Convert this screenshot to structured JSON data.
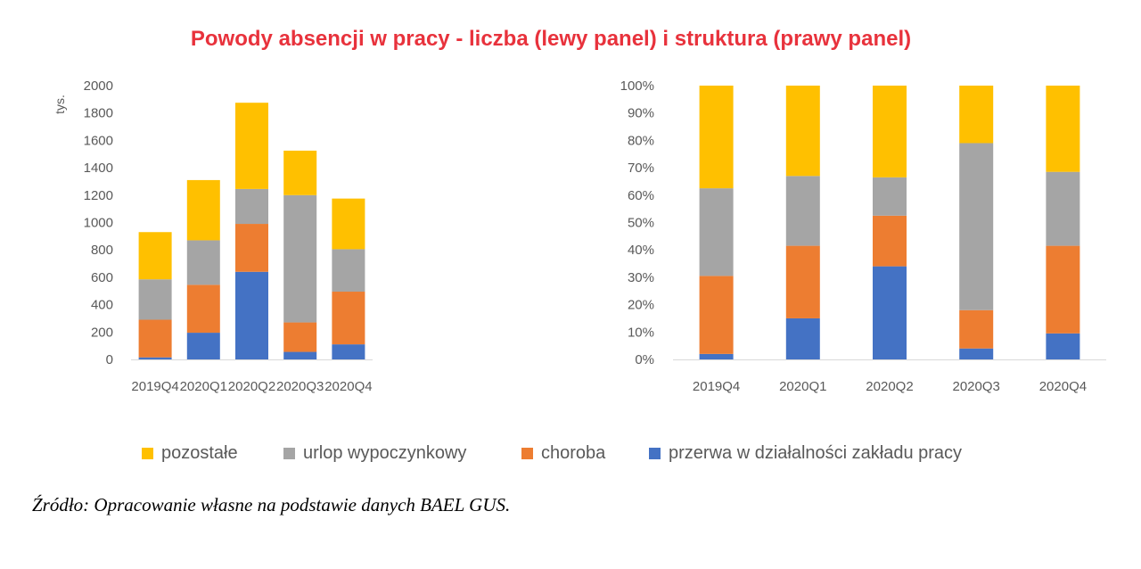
{
  "title": "Powody absencji w pracy - liczba (lewy panel) i struktura (prawy panel)",
  "source": "Źródło: Opracowanie własne na podstawie danych BAEL GUS.",
  "colors": {
    "pozostale": "#ffc000",
    "urlop": "#a5a5a5",
    "choroba": "#ed7d31",
    "przerwa": "#4472c4",
    "axis_text": "#595959",
    "title": "#e8323c"
  },
  "legend": [
    {
      "name": "pozostałe",
      "color": "#ffc000"
    },
    {
      "name": "urlop wypoczynkowy",
      "color": "#a5a5a5"
    },
    {
      "name": "choroba",
      "color": "#ed7d31"
    },
    {
      "name": "przerwa w działalności zakładu pracy",
      "color": "#4472c4"
    }
  ],
  "chart_data": [
    {
      "type": "bar",
      "stacked": true,
      "categories": [
        "2019Q4",
        "2020Q1",
        "2020Q2",
        "2020Q3",
        "2020Q4"
      ],
      "ylabel": "tys.",
      "ylim": [
        0,
        2000
      ],
      "yticks": [
        "0",
        "200",
        "400",
        "600",
        "800",
        "1000",
        "1200",
        "1400",
        "1600",
        "1800",
        "2000"
      ],
      "grid": false,
      "series": [
        {
          "name": "przerwa w działalności zakładu pracy",
          "values": [
            15,
            195,
            640,
            55,
            110
          ]
        },
        {
          "name": "choroba",
          "values": [
            275,
            350,
            350,
            215,
            385
          ]
        },
        {
          "name": "urlop wypoczynkowy",
          "values": [
            295,
            325,
            255,
            930,
            310
          ]
        },
        {
          "name": "pozostałe",
          "values": [
            345,
            440,
            630,
            325,
            370
          ]
        }
      ]
    },
    {
      "type": "bar",
      "stacked": true,
      "percent": true,
      "categories": [
        "2019Q4",
        "2020Q1",
        "2020Q2",
        "2020Q3",
        "2020Q4"
      ],
      "ylim": [
        0,
        100
      ],
      "yticks": [
        "0%",
        "10%",
        "20%",
        "30%",
        "40%",
        "50%",
        "60%",
        "70%",
        "80%",
        "90%",
        "100%"
      ],
      "grid": false,
      "series": [
        {
          "name": "przerwa w działalności zakładu pracy",
          "values": [
            2,
            15,
            34,
            4,
            9.5
          ]
        },
        {
          "name": "choroba",
          "values": [
            28.5,
            26.5,
            18.5,
            14,
            32
          ]
        },
        {
          "name": "urlop wypoczynkowy",
          "values": [
            32,
            25.5,
            14,
            61,
            27
          ]
        },
        {
          "name": "pozostałe",
          "values": [
            37.5,
            33,
            33.5,
            21,
            31.5
          ]
        }
      ]
    }
  ]
}
